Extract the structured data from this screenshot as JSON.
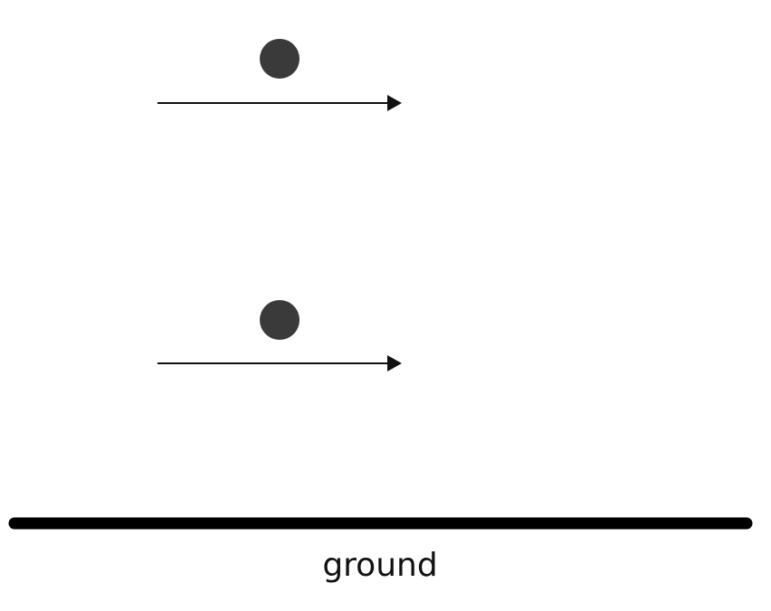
{
  "diagram": {
    "ground_label": "ground",
    "colors": {
      "ball": "#3a3a3a",
      "arrow": "#111111",
      "ground": "#000000"
    },
    "objects": [
      {
        "name": "upper-ball",
        "shape": "circle",
        "has_velocity_arrow": true,
        "arrow_direction": "right"
      },
      {
        "name": "lower-ball",
        "shape": "circle",
        "has_velocity_arrow": true,
        "arrow_direction": "right"
      }
    ]
  }
}
